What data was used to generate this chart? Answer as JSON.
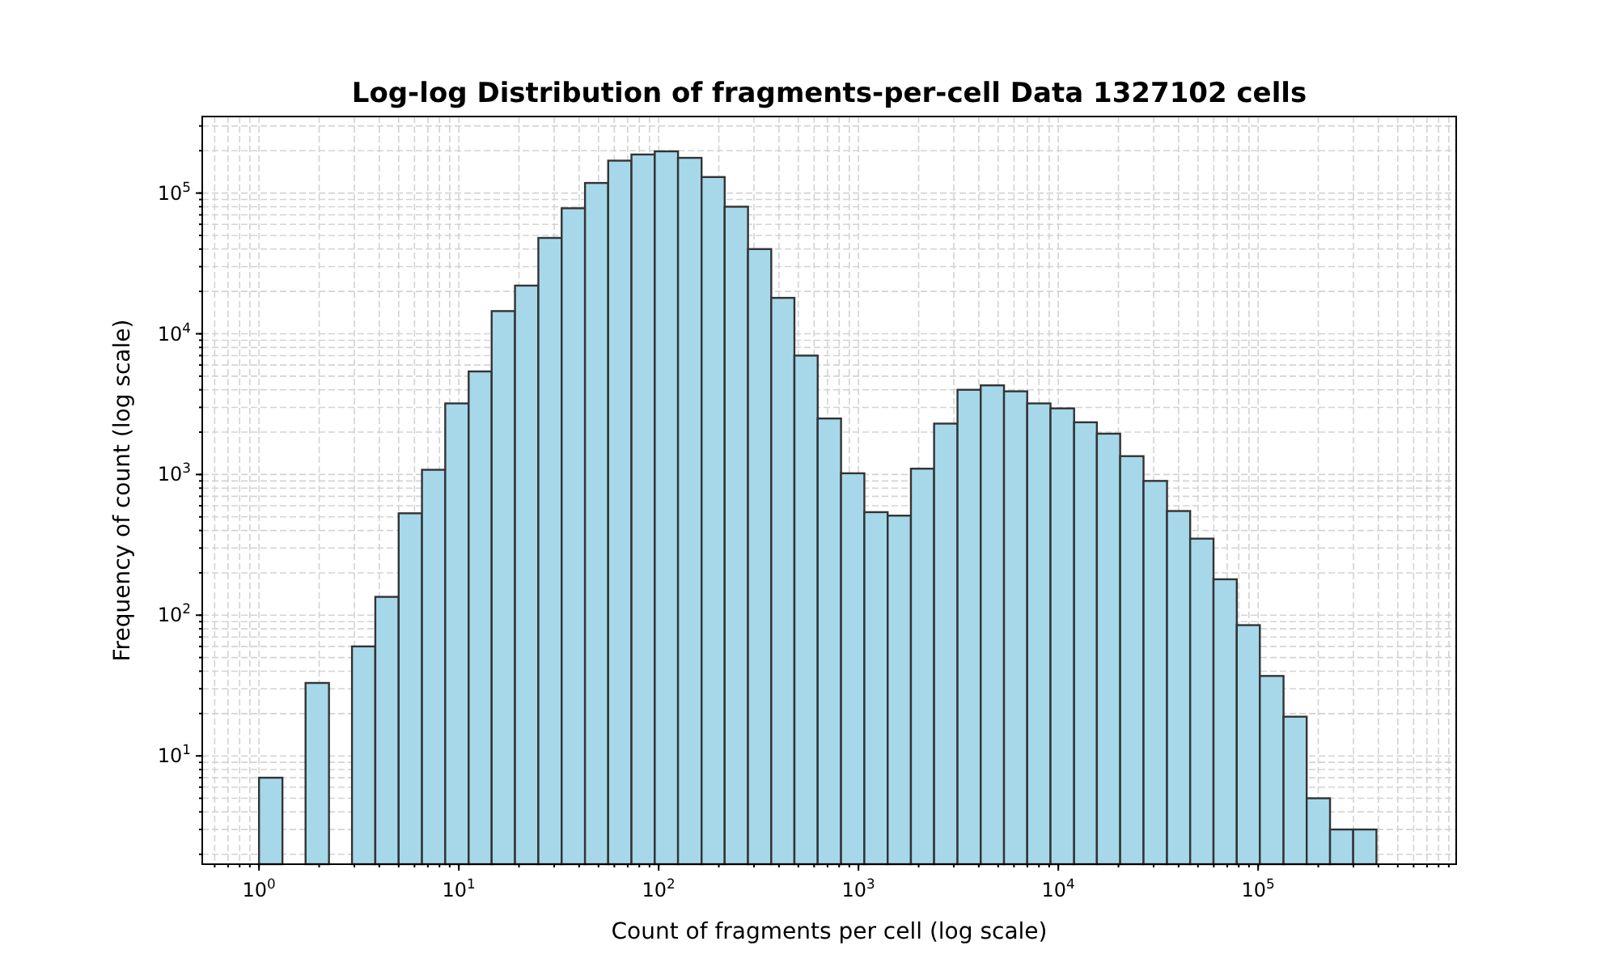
{
  "chart_data": {
    "type": "histogram",
    "title": "Log-log Distribution of fragments-per-cell Data 1327102 cells",
    "xlabel": "Count of fragments per cell (log scale)",
    "ylabel": "Frequency of count (log scale)",
    "bins": [
      1,
      1.31,
      1.71,
      2.24,
      2.92,
      3.82,
      5.0,
      6.54,
      8.55,
      11.2,
      14.6,
      19.1,
      25.0,
      32.7,
      42.8,
      55.9,
      73.1,
      95.6,
      125,
      164,
      214,
      280,
      366,
      478,
      625,
      818,
      1070,
      1400,
      1830,
      2390,
      3130,
      4090,
      5350,
      6990,
      9140,
      12000,
      15600,
      20400,
      26700,
      35000,
      45700,
      59800,
      78200,
      102000,
      134000,
      175000,
      229000,
      299000,
      391000
    ],
    "values": [
      7,
      null,
      33,
      null,
      60,
      135,
      530,
      1080,
      3200,
      5400,
      14500,
      22000,
      48000,
      78000,
      118000,
      170000,
      188000,
      198000,
      178000,
      130000,
      80000,
      40000,
      18000,
      7000,
      2500,
      1020,
      540,
      510,
      1100,
      2300,
      4000,
      4300,
      3900,
      3200,
      2950,
      2350,
      1950,
      1350,
      900,
      550,
      350,
      180,
      85,
      37,
      19,
      5,
      3,
      3
    ],
    "color": "#a6d8ea",
    "log": "xy",
    "xlim": [
      0.52,
      980000
    ],
    "ylim": [
      1.7,
      350000
    ],
    "xticks": [
      {
        "value": 1,
        "label": "10$^{0}$"
      },
      {
        "value": 10,
        "label": "10$^{1}$"
      },
      {
        "value": 100,
        "label": "10$^{2}$"
      },
      {
        "value": 1000,
        "label": "10$^{3}$"
      },
      {
        "value": 10000,
        "label": "10$^{4}$"
      },
      {
        "value": 100000,
        "label": "10$^{5}$"
      }
    ],
    "yticks": [
      {
        "value": 10,
        "label": "10$^{1}$"
      },
      {
        "value": 100,
        "label": "10$^{2}$"
      },
      {
        "value": 1000,
        "label": "10$^{3}$"
      },
      {
        "value": 10000,
        "label": "10$^{4}$"
      },
      {
        "value": 100000,
        "label": "10$^{5}$"
      }
    ],
    "grid": true
  }
}
